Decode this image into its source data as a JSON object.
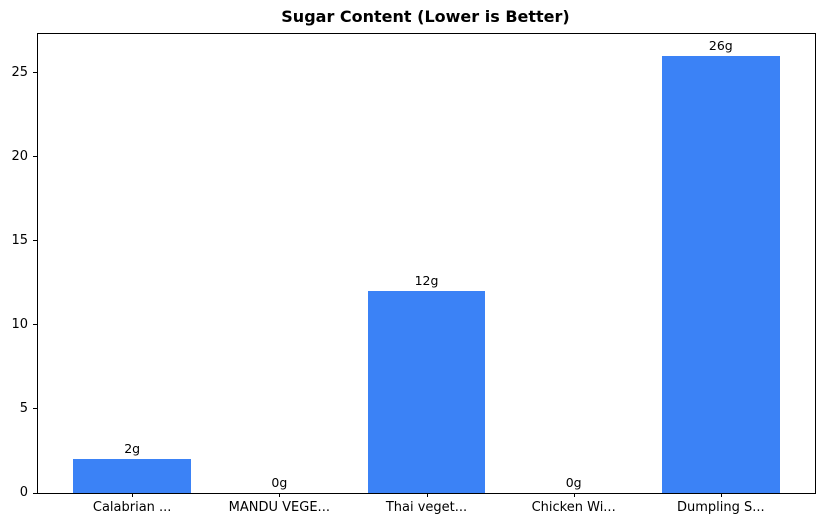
{
  "title": "Sugar Content (Lower is Better)",
  "chart_data": {
    "type": "bar",
    "title": "Sugar Content (Lower is Better)",
    "categories": [
      "Calabrian ...",
      "MANDU VEGE...",
      "Thai veget...",
      "Chicken Wi...",
      "Dumpling S..."
    ],
    "values": [
      2,
      0,
      12,
      0,
      26
    ],
    "bar_labels": [
      "2g",
      "0g",
      "12g",
      "0g",
      "26g"
    ],
    "xlabel": "",
    "ylabel": "",
    "yticks": [
      0,
      5,
      10,
      15,
      20,
      25
    ],
    "ylim": [
      0,
      27.3
    ],
    "bar_color": "#3b82f6",
    "grid": false,
    "legend_position": "none"
  }
}
